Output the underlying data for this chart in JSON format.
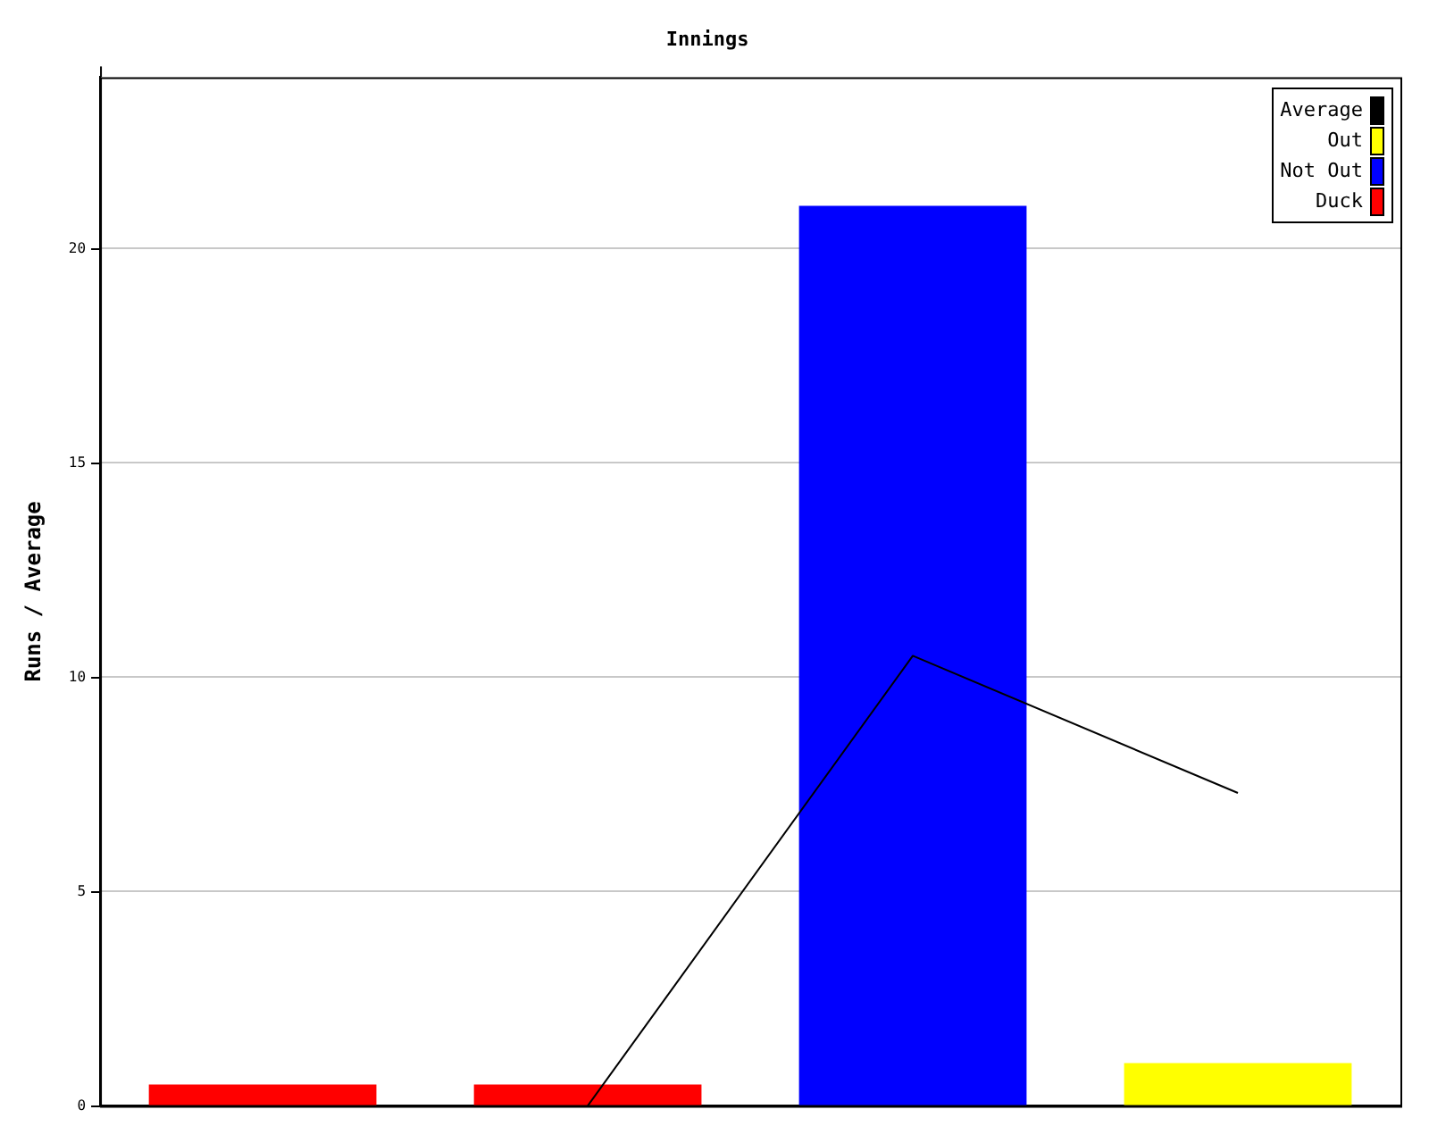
{
  "chart_data": {
    "type": "bar",
    "title": "Innings",
    "ylabel": "Runs / Average",
    "categories": [
      null,
      null,
      null,
      null
    ],
    "series": [
      {
        "name": "Average",
        "type": "line",
        "color": "#000000",
        "marker": "none",
        "values": [
          null,
          0,
          10.5,
          7.3
        ]
      },
      {
        "name": "Out",
        "color": "#ffff00",
        "values": [
          null,
          null,
          null,
          1
        ]
      },
      {
        "name": "Not Out",
        "color": "#0000ff",
        "values": [
          null,
          null,
          21,
          null
        ]
      },
      {
        "name": "Duck",
        "color": "#ff0000",
        "values": [
          0.5,
          0.5,
          null,
          null
        ]
      }
    ],
    "ylim": [
      0,
      24
    ],
    "yticks": [
      0,
      5,
      10,
      15,
      20
    ],
    "grid": "y",
    "legend": "top right",
    "tick_labels": "y"
  }
}
